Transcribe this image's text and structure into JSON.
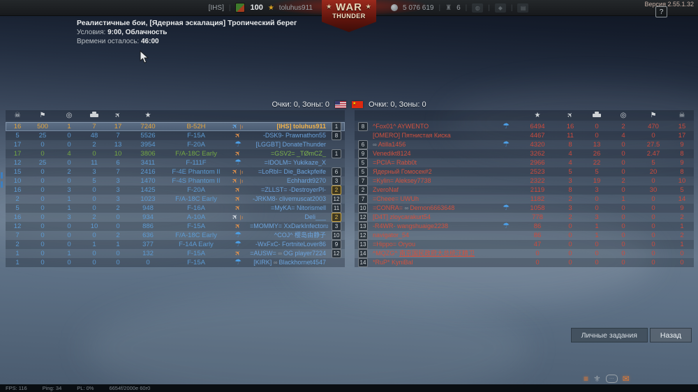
{
  "version": "Версия 2.55.1.32",
  "topbar": {
    "clan": "[IHS]",
    "level": "100",
    "nick": "toluhus911",
    "silver": "5 076 619",
    "eagles": "6",
    "help": "?",
    "icons": [
      "rank-emblem-icon",
      "prestige-star-icon",
      "silver-lions-icon",
      "golden-eagles-icon",
      "spotlight-icon",
      "gem-icon",
      "decal-icon"
    ]
  },
  "logo": {
    "line1": "WAR",
    "line2": "THUNDER"
  },
  "match": {
    "title": "Реалистичные бои, [Ядерная эскалация] Тропический берег",
    "conditions_label": "Условия:",
    "conditions": "9:00, Облачность",
    "time_label": "Времени осталось:",
    "time": "46:00"
  },
  "score_header": {
    "left": "Очки: 0, Зоны: 0",
    "right": "Очки: 0, Зоны: 0",
    "flags": [
      "us-flag",
      "cn-flag"
    ],
    "cn_star": "★"
  },
  "columns": [
    "deaths-icon",
    "captures-icon",
    "assists-icon",
    "ground-kills-icon",
    "air-kills-icon",
    "score-icon"
  ],
  "left_team": {
    "rows": [
      {
        "v": [
          16,
          500,
          1,
          7,
          17,
          7240
        ],
        "vehicle": "B-52H",
        "status": "bomber",
        "ind": true,
        "platform": false,
        "clan": "[IHS]",
        "name": "toluhus911",
        "badge": "1",
        "gold": false,
        "kind": "player"
      },
      {
        "v": [
          5,
          25,
          0,
          48,
          7,
          5526
        ],
        "vehicle": "F-15A",
        "status": "jet",
        "ind": false,
        "platform": false,
        "clan": "-DSK9-",
        "name": "Prawnathon55",
        "badge": "8",
        "gold": false,
        "kind": "ally"
      },
      {
        "v": [
          17,
          0,
          0,
          2,
          13,
          3954
        ],
        "vehicle": "F-20A",
        "status": "parachute",
        "ind": false,
        "platform": false,
        "clan": "[LGGBT]",
        "name": "DonateThunder",
        "badge": "",
        "gold": false,
        "kind": "ally"
      },
      {
        "v": [
          17,
          0,
          4,
          0,
          10,
          3806
        ],
        "vehicle": "F/A-18C Early",
        "status": "jet",
        "ind": false,
        "platform": false,
        "clan": "=GSV2=",
        "name": "_TØmCZ_",
        "badge": "1",
        "gold": false,
        "kind": "squad"
      },
      {
        "v": [
          12,
          25,
          0,
          11,
          6,
          3411
        ],
        "vehicle": "F-111F",
        "status": "parachute",
        "ind": false,
        "platform": false,
        "clan": "=IDOLM=",
        "name": "Yukikaze_X",
        "badge": "",
        "gold": false,
        "kind": "ally"
      },
      {
        "v": [
          15,
          0,
          2,
          3,
          7,
          2416
        ],
        "vehicle": "F-4E Phantom II",
        "status": "jet",
        "ind": true,
        "platform": false,
        "clan": "=LoRbl=",
        "name": "Die_Backpfeife",
        "badge": "6",
        "gold": false,
        "kind": "ally"
      },
      {
        "v": [
          10,
          0,
          0,
          5,
          3,
          1470
        ],
        "vehicle": "F-4S Phantom II",
        "status": "jet",
        "ind": true,
        "platform": false,
        "clan": "",
        "name": "Echhardt9270",
        "badge": "3",
        "gold": false,
        "kind": "ally"
      },
      {
        "v": [
          16,
          0,
          3,
          0,
          3,
          1425
        ],
        "vehicle": "F-20A",
        "status": "jet",
        "ind": false,
        "platform": false,
        "clan": "=ZLLST=",
        "name": "-DestroyerPl-",
        "badge": "2",
        "gold": true,
        "kind": "ally"
      },
      {
        "v": [
          2,
          0,
          1,
          0,
          3,
          1023
        ],
        "vehicle": "F/A-18C Early",
        "status": "jet",
        "ind": false,
        "platform": false,
        "clan": "-JRKM8-",
        "name": "clivemuscat2003",
        "badge": "12",
        "gold": false,
        "kind": "ally"
      },
      {
        "v": [
          5,
          0,
          1,
          0,
          2,
          948
        ],
        "vehicle": "F-16A",
        "status": "jet",
        "ind": false,
        "platform": false,
        "clan": "=MyKA=",
        "name": "Nitorismell",
        "badge": "11",
        "gold": false,
        "kind": "ally"
      },
      {
        "v": [
          16,
          0,
          3,
          2,
          0,
          934
        ],
        "vehicle": "A-10A",
        "status": "plane",
        "ind": true,
        "platform": false,
        "clan": "",
        "name": "Deli___",
        "badge": "2",
        "gold": true,
        "kind": "ally"
      },
      {
        "v": [
          12,
          0,
          0,
          10,
          0,
          886
        ],
        "vehicle": "F-15A",
        "status": "jet",
        "ind": false,
        "platform": false,
        "clan": "=MOMMY=",
        "name": "XxDarkInfectonxX",
        "badge": "3",
        "gold": false,
        "kind": "ally"
      },
      {
        "v": [
          7,
          0,
          0,
          0,
          2,
          636
        ],
        "vehicle": "F/A-18C Early",
        "status": "parachute",
        "ind": false,
        "platform": false,
        "clan": "^COJ^",
        "name": "樱岛由静子",
        "badge": "10",
        "gold": false,
        "kind": "ally"
      },
      {
        "v": [
          2,
          0,
          0,
          1,
          1,
          377
        ],
        "vehicle": "F-14A Early",
        "status": "parachute",
        "ind": false,
        "platform": false,
        "clan": "-WxFxC-",
        "name": "FortniteLover86",
        "badge": "9",
        "gold": false,
        "kind": "ally"
      },
      {
        "v": [
          1,
          0,
          1,
          0,
          0,
          132
        ],
        "vehicle": "F-15A",
        "status": "jet",
        "ind": false,
        "platform": true,
        "clan": "=AUSW=",
        "name": "OG player7224",
        "badge": "12",
        "gold": false,
        "kind": "ally"
      },
      {
        "v": [
          1,
          0,
          0,
          0,
          0,
          0
        ],
        "vehicle": "F-15A",
        "status": "parachute",
        "ind": false,
        "platform": true,
        "clan": "[KIRK]",
        "name": "Blackhornet4547",
        "badge": "",
        "gold": false,
        "kind": "ally"
      }
    ]
  },
  "right_team": {
    "rows": [
      {
        "badge": "8",
        "clan": "^Fox01^",
        "platform": false,
        "name": "AYWENTO",
        "status": "parachute",
        "v": [
          6494,
          16,
          0,
          2,
          470,
          15
        ],
        "underline": false
      },
      {
        "badge": "",
        "clan": "[OMERO]",
        "platform": false,
        "name": "Пятнистая Киска",
        "status": "none",
        "v": [
          4467,
          11,
          0,
          4,
          0,
          17
        ],
        "underline": false
      },
      {
        "badge": "6",
        "clan": "",
        "platform": true,
        "name": "Atilla1456",
        "status": "parachute",
        "v": [
          4320,
          8,
          13,
          0,
          27.5,
          9
        ],
        "underline": false
      },
      {
        "badge": "9",
        "clan": "",
        "platform": false,
        "name": "Venedikt8124",
        "status": "none",
        "v": [
          3262,
          4,
          26,
          0,
          2.47,
          8
        ],
        "underline": false
      },
      {
        "badge": "5",
        "clan": "=PCIA=",
        "platform": false,
        "name": "Rabb0t",
        "status": "none",
        "v": [
          2966,
          4,
          22,
          0,
          5,
          9
        ],
        "underline": false
      },
      {
        "badge": "5",
        "clan": "",
        "platform": false,
        "name": "Ядерный Гомосек#2",
        "status": "none",
        "v": [
          2523,
          5,
          5,
          0,
          20,
          8
        ],
        "underline": false
      },
      {
        "badge": "7",
        "clan": "=Kylin=",
        "platform": false,
        "name": "Aleksey7738",
        "status": "none",
        "v": [
          2322,
          3,
          19,
          2,
          0,
          10
        ],
        "underline": false
      },
      {
        "badge": "2",
        "clan": "",
        "platform": false,
        "name": "ZveroNaf",
        "status": "none",
        "v": [
          2119,
          8,
          3,
          0,
          30,
          5
        ],
        "underline": false
      },
      {
        "badge": "7",
        "clan": "=Cheee=",
        "platform": false,
        "name": "UWUh",
        "status": "none",
        "v": [
          1182,
          2,
          0,
          1,
          0,
          14
        ],
        "underline": false
      },
      {
        "badge": "10",
        "clan": "=CONRA=",
        "platform": true,
        "name": "Demon6663648",
        "status": "parachute",
        "v": [
          1058,
          3,
          0,
          0,
          0,
          9
        ],
        "underline": false
      },
      {
        "badge": "12",
        "clan": "[D4T]",
        "platform": false,
        "name": "zloycarakurt54",
        "status": "none",
        "v": [
          778,
          2,
          3,
          0,
          0,
          2
        ],
        "underline": false
      },
      {
        "badge": "13",
        "clan": "-R4WR-",
        "platform": false,
        "name": "wangshuaige2238",
        "status": "parachute",
        "v": [
          86,
          0,
          1,
          0,
          0,
          1
        ],
        "underline": false
      },
      {
        "badge": "12",
        "clan": "",
        "platform": false,
        "name": "navigator_54",
        "status": "none",
        "v": [
          86,
          0,
          1,
          0,
          0,
          2
        ],
        "underline": false
      },
      {
        "badge": "13",
        "clan": "=Hippo=",
        "platform": false,
        "name": "Oryou",
        "status": "none",
        "v": [
          47,
          0,
          0,
          0,
          0,
          1
        ],
        "underline": false
      },
      {
        "badge": "14",
        "clan": "^MQZG^",
        "platform": false,
        "name": "南京国民政府大总统汪精卫",
        "status": "none",
        "v": [
          0,
          0,
          0,
          0,
          0,
          0
        ],
        "underline": true
      },
      {
        "badge": "14",
        "clan": "*RuP*",
        "platform": false,
        "name": "KyniBal",
        "status": "none",
        "v": [
          0,
          0,
          0,
          0,
          0,
          0
        ],
        "underline": false
      }
    ]
  },
  "buttons": {
    "personal_tasks": "Личные задания",
    "back": "Назад"
  },
  "statusbar": {
    "fps": "FPS: 116",
    "ping": "Ping: 34",
    "pl": "PL: 0%",
    "net": "6654f/2000e 60r0"
  },
  "colors": {
    "ally": "#5d9bd3",
    "enemy": "#cd4b3d",
    "player_gold": "#e2a43f",
    "squad_green": "#74a843",
    "jet_orange": "#e8944a",
    "parachute_blue": "#4da0e8"
  }
}
